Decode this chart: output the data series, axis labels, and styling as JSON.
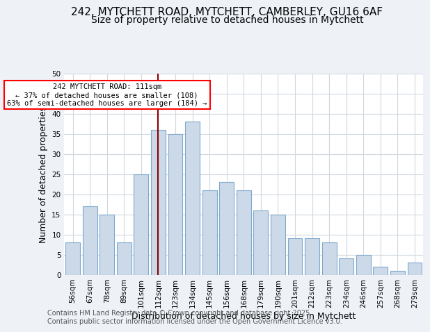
{
  "title_line1": "242, MYTCHETT ROAD, MYTCHETT, CAMBERLEY, GU16 6AF",
  "title_line2": "Size of property relative to detached houses in Mytchett",
  "xlabel": "Distribution of detached houses by size in Mytchett",
  "ylabel": "Number of detached properties",
  "categories": [
    "56sqm",
    "67sqm",
    "78sqm",
    "89sqm",
    "101sqm",
    "112sqm",
    "123sqm",
    "134sqm",
    "145sqm",
    "156sqm",
    "168sqm",
    "179sqm",
    "190sqm",
    "201sqm",
    "212sqm",
    "223sqm",
    "234sqm",
    "246sqm",
    "257sqm",
    "268sqm",
    "279sqm"
  ],
  "values": [
    8,
    17,
    15,
    8,
    25,
    36,
    35,
    38,
    21,
    23,
    21,
    16,
    15,
    9,
    9,
    8,
    4,
    5,
    2,
    1,
    3
  ],
  "bar_color": "#ccd9e8",
  "bar_edge_color": "#7fa8cc",
  "red_line_index": 5,
  "red_line_color": "#8b0000",
  "annotation_text": "242 MYTCHETT ROAD: 111sqm\n← 37% of detached houses are smaller (108)\n63% of semi-detached houses are larger (184) →",
  "annotation_box_color": "white",
  "annotation_box_edge": "red",
  "ylim": [
    0,
    50
  ],
  "yticks": [
    0,
    5,
    10,
    15,
    20,
    25,
    30,
    35,
    40,
    45,
    50
  ],
  "footer_line1": "Contains HM Land Registry data © Crown copyright and database right 2025.",
  "footer_line2": "Contains public sector information licensed under the Open Government Licence v3.0.",
  "background_color": "#eef2f7",
  "plot_background": "#ffffff",
  "grid_color": "#d0d8e0",
  "title_fontsize": 11,
  "subtitle_fontsize": 10,
  "tick_fontsize": 7.5,
  "label_fontsize": 9,
  "footer_fontsize": 7
}
